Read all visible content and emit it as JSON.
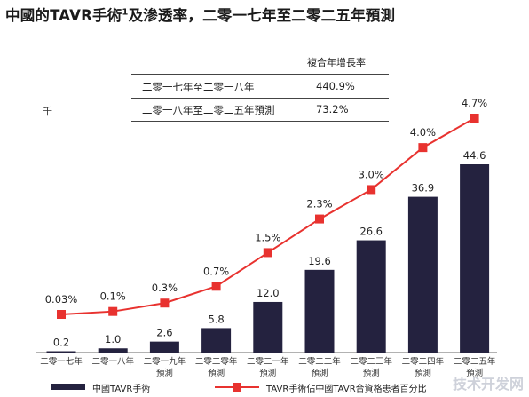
{
  "title": "中國的TAVR手術",
  "title_sup": "1",
  "title_rest": "及滲透率，二零一七年至二零二五年預測",
  "unit": "千",
  "cagr_table": {
    "header": "複合年增長率",
    "rows": [
      {
        "period": "二零一七年至二零一八年",
        "value": "440.9%"
      },
      {
        "period": "二零一八年至二零二五年預測",
        "value": "73.2%"
      }
    ]
  },
  "chart_data": {
    "type": "bar",
    "categories": [
      [
        "二零一七年"
      ],
      [
        "二零一八年"
      ],
      [
        "二零一九年",
        "預測"
      ],
      [
        "二零二零年",
        "預測"
      ],
      [
        "二零二一年",
        "預測"
      ],
      [
        "二零二二年",
        "預測"
      ],
      [
        "二零二三年",
        "預測"
      ],
      [
        "二零二四年",
        "預測"
      ],
      [
        "二零二五年",
        "預測"
      ]
    ],
    "series": [
      {
        "name": "中國TAVR手術",
        "type": "bar",
        "values": [
          0.2,
          1.0,
          2.6,
          5.8,
          12.0,
          19.6,
          26.6,
          36.9,
          44.6
        ],
        "labels": [
          "0.2",
          "1.0",
          "2.6",
          "5.8",
          "12.0",
          "19.6",
          "26.6",
          "36.9",
          "44.6"
        ],
        "color": "#24223f"
      },
      {
        "name": "TAVR手術佔中國TAVR合資格患者百分比",
        "type": "line",
        "values": [
          0.03,
          0.1,
          0.3,
          0.7,
          1.5,
          2.3,
          3.0,
          4.0,
          4.7
        ],
        "labels": [
          "0.03%",
          "0.1%",
          "0.3%",
          "0.7%",
          "1.5%",
          "2.3%",
          "3.0%",
          "4.0%",
          "4.7%"
        ],
        "color": "#e8322f"
      }
    ],
    "bar_ylim": [
      0,
      50
    ],
    "line_ylim": [
      0,
      5
    ],
    "grid": false,
    "legend_position": "bottom"
  },
  "watermark": "技术开发网"
}
